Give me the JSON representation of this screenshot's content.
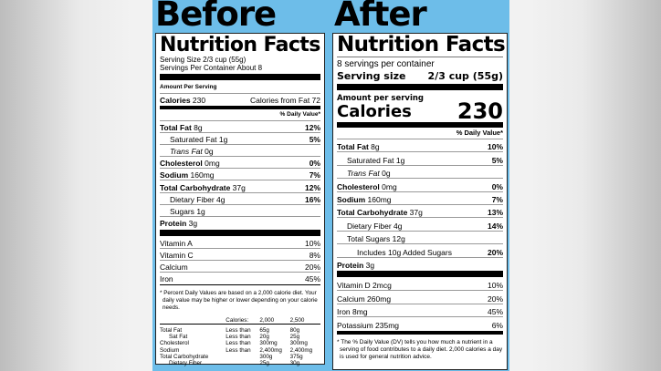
{
  "headings": {
    "before": "Before",
    "after": "After"
  },
  "before": {
    "title": "Nutrition Facts",
    "serving_size": "Serving Size 2/3 cup (55g)",
    "servings": "Servings Per Container About 8",
    "amount_per_serving": "Amount Per Serving",
    "calories_label": "Calories",
    "calories_value": "230",
    "calories_from_fat": "Calories from Fat 72",
    "dv_header": "% Daily Value*",
    "nutrients": [
      {
        "name": "Total Fat",
        "amount": "8g",
        "dv": "12%",
        "bold": true,
        "indent": false
      },
      {
        "name": "Saturated Fat",
        "amount": "1g",
        "dv": "5%",
        "bold": false,
        "indent": true
      },
      {
        "name": "Trans Fat",
        "amount": "0g",
        "dv": "",
        "bold": false,
        "indent": true
      },
      {
        "name": "Cholesterol",
        "amount": "0mg",
        "dv": "0%",
        "bold": true,
        "indent": false
      },
      {
        "name": "Sodium",
        "amount": "160mg",
        "dv": "7%",
        "bold": true,
        "indent": false
      },
      {
        "name": "Total Carbohydrate",
        "amount": "37g",
        "dv": "12%",
        "bold": true,
        "indent": false
      },
      {
        "name": "Dietary Fiber",
        "amount": "4g",
        "dv": "16%",
        "bold": false,
        "indent": true
      },
      {
        "name": "Sugars",
        "amount": "1g",
        "dv": "",
        "bold": false,
        "indent": true
      },
      {
        "name": "Protein",
        "amount": "3g",
        "dv": "",
        "bold": true,
        "indent": false
      }
    ],
    "vitamins": [
      {
        "name": "Vitamin A",
        "dv": "10%"
      },
      {
        "name": "Vitamin C",
        "dv": "8%"
      },
      {
        "name": "Calcium",
        "dv": "20%"
      },
      {
        "name": "Iron",
        "dv": "45%"
      }
    ],
    "footnote": "* Percent Daily Values are based on a 2,000 calorie diet. Your daily value may be higher or lower depending on your calorie needs.",
    "table": {
      "header": [
        "",
        "Calories:",
        "2,000",
        "2,500"
      ],
      "rows": [
        [
          "Total Fat",
          "Less than",
          "65g",
          "80g"
        ],
        [
          "Sat Fat",
          "Less than",
          "20g",
          "25g"
        ],
        [
          "Cholesterol",
          "Less than",
          "300mg",
          "300mg"
        ],
        [
          "Sodium",
          "Less than",
          "2,400mg",
          "2,400mg"
        ],
        [
          "Total Carbohydrate",
          "",
          "300g",
          "375g"
        ],
        [
          "Dietary Fiber",
          "",
          "25g",
          "30g"
        ]
      ]
    }
  },
  "after": {
    "title": "Nutrition Facts",
    "servings": "8 servings per container",
    "serving_size_label": "Serving size",
    "serving_size_value": "2/3 cup (55g)",
    "amount_per_serving": "Amount per serving",
    "calories_label": "Calories",
    "calories_value": "230",
    "dv_header": "% Daily Value*",
    "nutrients": [
      {
        "name": "Total Fat",
        "amount": "8g",
        "dv": "10%",
        "bold": true,
        "indent": 0
      },
      {
        "name": "Saturated Fat",
        "amount": "1g",
        "dv": "5%",
        "bold": false,
        "indent": 1
      },
      {
        "name": "Trans Fat",
        "amount": "0g",
        "dv": "",
        "bold": false,
        "indent": 1
      },
      {
        "name": "Cholesterol",
        "amount": "0mg",
        "dv": "0%",
        "bold": true,
        "indent": 0
      },
      {
        "name": "Sodium",
        "amount": "160mg",
        "dv": "7%",
        "bold": true,
        "indent": 0
      },
      {
        "name": "Total Carbohydrate",
        "amount": "37g",
        "dv": "13%",
        "bold": true,
        "indent": 0
      },
      {
        "name": "Dietary Fiber",
        "amount": "4g",
        "dv": "14%",
        "bold": false,
        "indent": 1
      },
      {
        "name": "Total Sugars",
        "amount": "12g",
        "dv": "",
        "bold": false,
        "indent": 1
      },
      {
        "name": "Includes 10g Added Sugars",
        "amount": "",
        "dv": "20%",
        "bold": false,
        "indent": 2
      },
      {
        "name": "Protein",
        "amount": "3g",
        "dv": "",
        "bold": true,
        "indent": 0
      }
    ],
    "vitamins": [
      {
        "name": "Vitamin D 2mcg",
        "dv": "10%"
      },
      {
        "name": "Calcium 260mg",
        "dv": "20%"
      },
      {
        "name": "Iron 8mg",
        "dv": "45%"
      },
      {
        "name": "Potassium 235mg",
        "dv": "6%"
      }
    ],
    "footnote": "* The % Daily Value (DV) tells you how much a nutrient in a serving of food contributes to a daily diet. 2,000 calories a day is used for general nutrition advice."
  }
}
